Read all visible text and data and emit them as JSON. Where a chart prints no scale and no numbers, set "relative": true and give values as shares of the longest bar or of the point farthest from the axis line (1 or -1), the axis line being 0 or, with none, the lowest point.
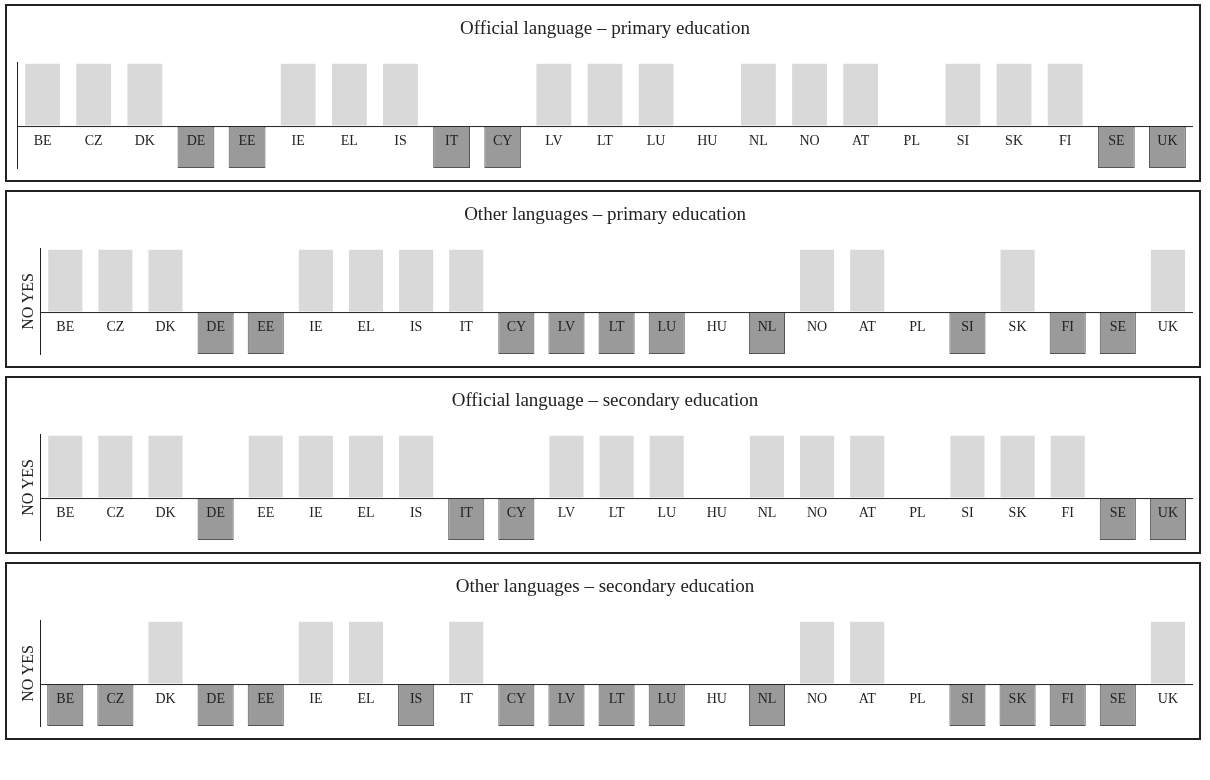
{
  "chart_data": [
    {
      "type": "bar",
      "title": "Official language – primary education",
      "relative": true,
      "legend": false,
      "grid": false,
      "categories": [
        "BE",
        "CZ",
        "DK",
        "DE",
        "EE",
        "IE",
        "EL",
        "IS",
        "IT",
        "CY",
        "LV",
        "LT",
        "LU",
        "HU",
        "NL",
        "NO",
        "AT",
        "PL",
        "SI",
        "SK",
        "FI",
        "SE",
        "UK"
      ],
      "values": [
        1,
        1,
        1,
        -0.65,
        -0.65,
        1,
        1,
        1,
        -0.65,
        -0.65,
        1,
        1,
        1,
        null,
        1,
        1,
        1,
        null,
        1,
        1,
        1,
        -0.65,
        -0.65
      ],
      "colors": [
        "#d9d9d9",
        "#d9d9d9",
        "#d9d9d9",
        "#9a9a9a",
        "#9a9a9a",
        "#d9d9d9",
        "#d9d9d9",
        "#d9d9d9",
        "#9a9a9a",
        "#9a9a9a",
        "#d9d9d9",
        "#d9d9d9",
        "#d9d9d9",
        "#d9d9d9",
        "#d9d9d9",
        "#d9d9d9",
        "#d9d9d9",
        "#d9d9d9",
        "#d9d9d9",
        "#d9d9d9",
        "#d9d9d9",
        "#9a9a9a",
        "#9a9a9a"
      ]
    },
    {
      "type": "bar",
      "title": "Other languages – primary education",
      "ylabel": "NO YES",
      "relative": true,
      "legend": false,
      "grid": false,
      "categories": [
        "BE",
        "CZ",
        "DK",
        "DE",
        "EE",
        "IE",
        "EL",
        "IS",
        "IT",
        "CY",
        "LV",
        "LT",
        "LU",
        "HU",
        "NL",
        "NO",
        "AT",
        "PL",
        "SI",
        "SK",
        "FI",
        "SE",
        "UK"
      ],
      "values": [
        1,
        1,
        1,
        -0.65,
        -0.65,
        1,
        1,
        1,
        1,
        -0.65,
        -0.65,
        -0.65,
        -0.65,
        null,
        -0.65,
        1,
        1,
        null,
        -0.65,
        1,
        -0.65,
        -0.65,
        1
      ],
      "colors": [
        "#d9d9d9",
        "#d9d9d9",
        "#d9d9d9",
        "#9a9a9a",
        "#9a9a9a",
        "#d9d9d9",
        "#d9d9d9",
        "#d9d9d9",
        "#d9d9d9",
        "#9a9a9a",
        "#9a9a9a",
        "#9a9a9a",
        "#9a9a9a",
        "#d9d9d9",
        "#9a9a9a",
        "#d9d9d9",
        "#d9d9d9",
        "#d9d9d9",
        "#9a9a9a",
        "#d9d9d9",
        "#9a9a9a",
        "#9a9a9a",
        "#d9d9d9"
      ]
    },
    {
      "type": "bar",
      "title": "Official language – secondary education",
      "ylabel": "NO YES",
      "relative": true,
      "legend": false,
      "grid": false,
      "categories": [
        "BE",
        "CZ",
        "DK",
        "DE",
        "EE",
        "IE",
        "EL",
        "IS",
        "IT",
        "CY",
        "LV",
        "LT",
        "LU",
        "HU",
        "NL",
        "NO",
        "AT",
        "PL",
        "SI",
        "SK",
        "FI",
        "SE",
        "UK"
      ],
      "values": [
        1,
        1,
        1,
        -0.65,
        1,
        1,
        1,
        1,
        -0.65,
        -0.65,
        1,
        1,
        1,
        null,
        1,
        1,
        1,
        null,
        1,
        1,
        1,
        -0.65,
        -0.65
      ],
      "colors": [
        "#d9d9d9",
        "#d9d9d9",
        "#d9d9d9",
        "#9a9a9a",
        "#d9d9d9",
        "#d9d9d9",
        "#d9d9d9",
        "#d9d9d9",
        "#9a9a9a",
        "#9a9a9a",
        "#d9d9d9",
        "#d9d9d9",
        "#d9d9d9",
        "#d9d9d9",
        "#d9d9d9",
        "#d9d9d9",
        "#d9d9d9",
        "#d9d9d9",
        "#d9d9d9",
        "#d9d9d9",
        "#d9d9d9",
        "#9a9a9a",
        "#9a9a9a"
      ]
    },
    {
      "type": "bar",
      "title": "Other languages – secondary education",
      "ylabel": "NO YES",
      "relative": true,
      "legend": false,
      "grid": false,
      "categories": [
        "BE",
        "CZ",
        "DK",
        "DE",
        "EE",
        "IE",
        "EL",
        "IS",
        "IT",
        "CY",
        "LV",
        "LT",
        "LU",
        "HU",
        "NL",
        "NO",
        "AT",
        "PL",
        "SI",
        "SK",
        "FI",
        "SE",
        "UK"
      ],
      "values": [
        -0.65,
        -0.65,
        1,
        -0.65,
        -0.65,
        1,
        1,
        -0.65,
        1,
        -0.65,
        -0.65,
        -0.65,
        -0.65,
        null,
        -0.65,
        1,
        1,
        null,
        -0.65,
        -0.65,
        -0.65,
        -0.65,
        1
      ],
      "colors": [
        "#9a9a9a",
        "#9a9a9a",
        "#d9d9d9",
        "#9a9a9a",
        "#9a9a9a",
        "#d9d9d9",
        "#d9d9d9",
        "#9a9a9a",
        "#d9d9d9",
        "#9a9a9a",
        "#9a9a9a",
        "#9a9a9a",
        "#9a9a9a",
        "#d9d9d9",
        "#9a9a9a",
        "#d9d9d9",
        "#d9d9d9",
        "#d9d9d9",
        "#9a9a9a",
        "#9a9a9a",
        "#9a9a9a",
        "#9a9a9a",
        "#d9d9d9"
      ]
    }
  ]
}
